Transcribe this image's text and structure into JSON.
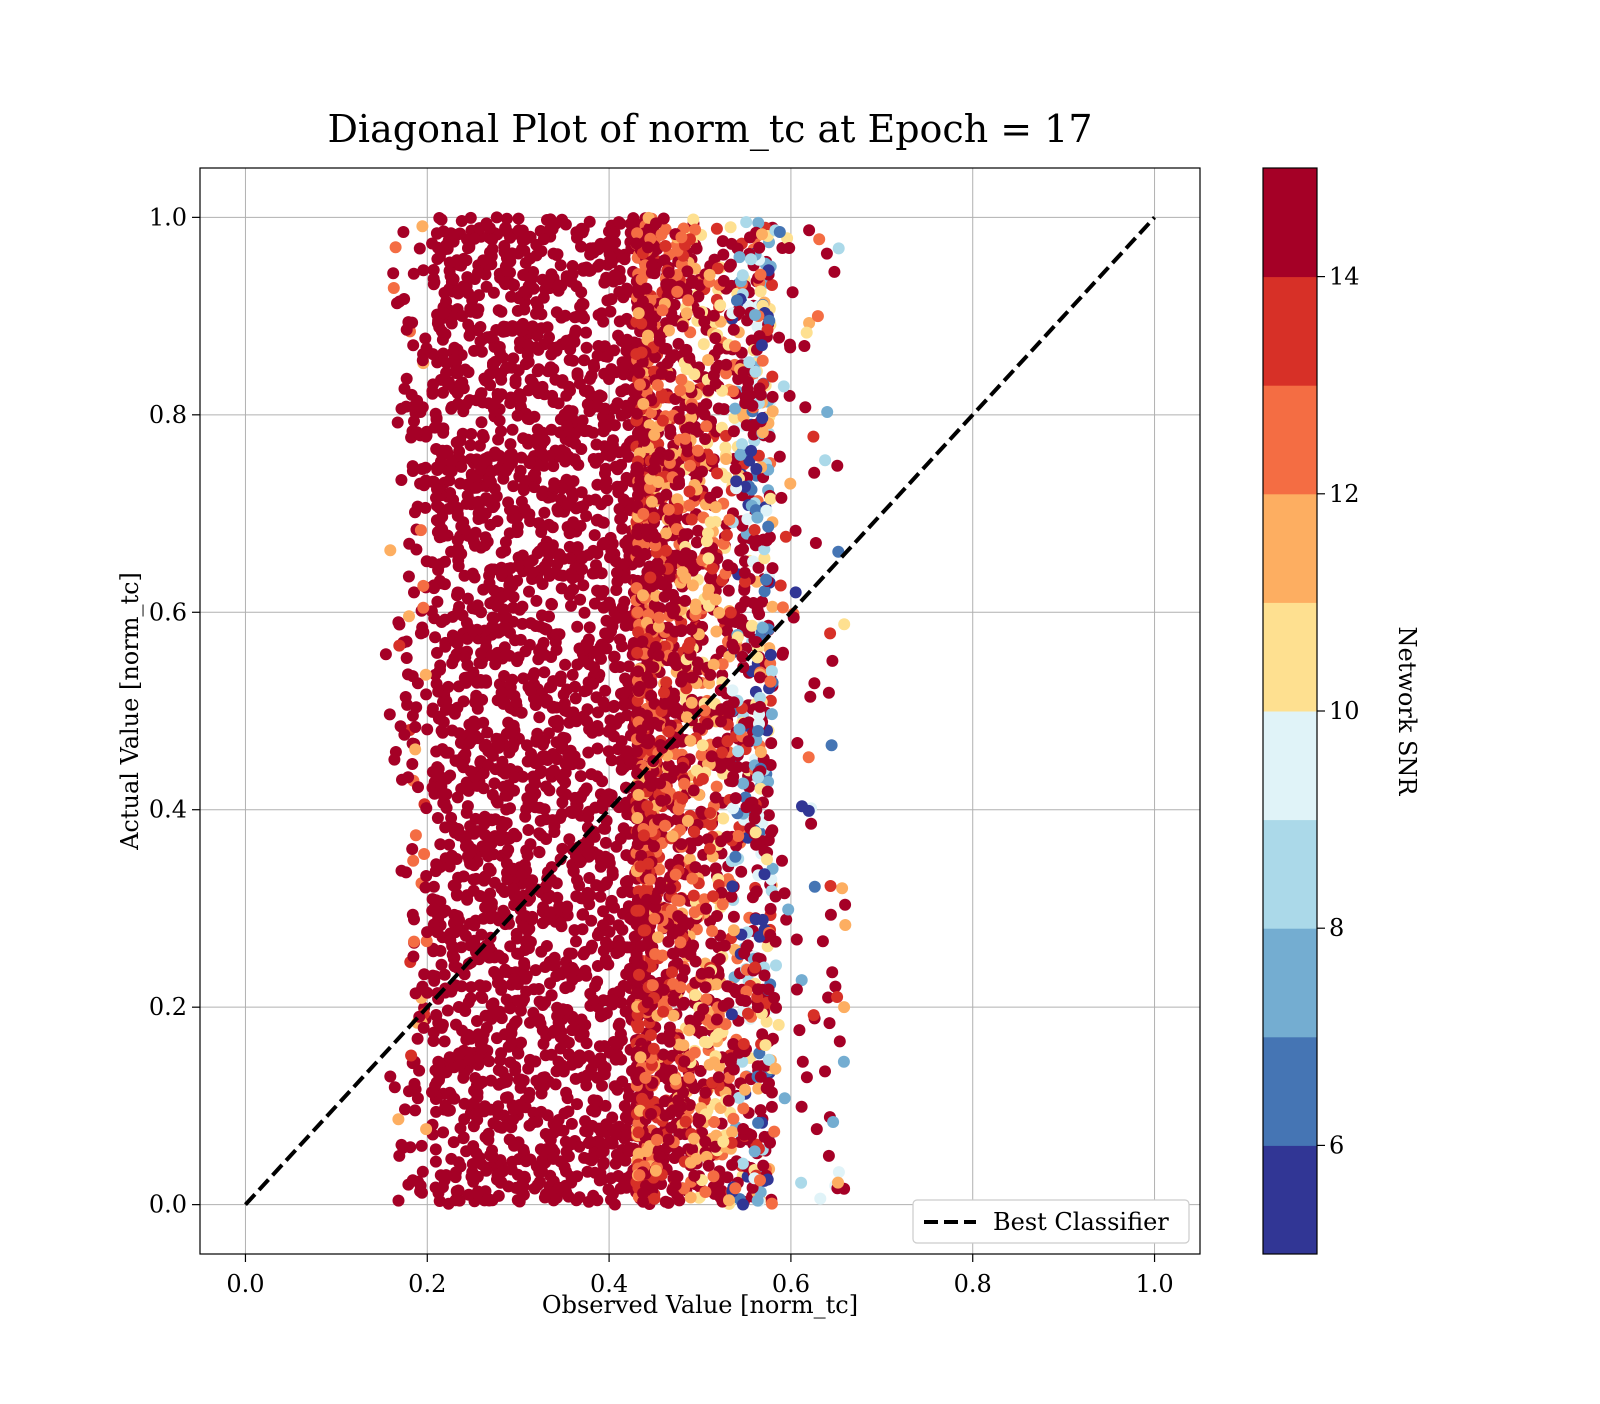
{
  "chart_data": {
    "type": "scatter",
    "title": "Diagonal Plot of norm_tc at Epoch = 17",
    "xlabel": "Observed Value [norm_tc]",
    "ylabel": "Actual Value [norm_tc]",
    "xlim": [
      -0.05,
      1.05
    ],
    "ylim": [
      -0.05,
      1.05
    ],
    "xticks": [
      "0.0",
      "0.2",
      "0.4",
      "0.6",
      "0.8",
      "1.0"
    ],
    "yticks": [
      "0.0",
      "0.2",
      "0.4",
      "0.6",
      "0.8",
      "1.0"
    ],
    "grid": true,
    "colorbar": {
      "label": "Network SNR",
      "range": [
        5,
        15
      ],
      "ticks": [
        "6",
        "8",
        "10",
        "12",
        "14"
      ],
      "levels": 10,
      "colormap": "RdYlBu_r",
      "colors": [
        "#313695",
        "#4575b4",
        "#74add1",
        "#abd9e9",
        "#e0f3f8",
        "#ffffbf",
        "#fee090",
        "#fdae61",
        "#f46d43",
        "#d73027",
        "#a50026"
      ]
    },
    "series": [
      {
        "name": "Best Classifier",
        "kind": "line",
        "style": "dashed",
        "color": "#000000",
        "x": [
          0.0,
          1.0
        ],
        "y": [
          0.0,
          1.0
        ]
      }
    ],
    "scatter_extent": {
      "x_range": [
        0.17,
        0.66
      ],
      "y_range": [
        0.0,
        1.0
      ],
      "dense_core_x_range": [
        0.2,
        0.45
      ],
      "color_by": "Network SNR"
    },
    "legend": {
      "position": "lower-right",
      "entries": [
        "Best Classifier"
      ]
    }
  }
}
